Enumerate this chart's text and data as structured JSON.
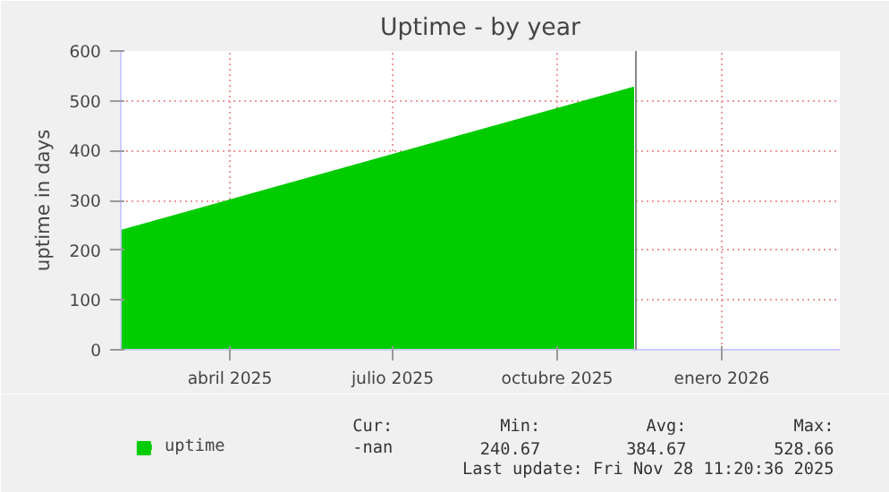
{
  "chart_data": {
    "type": "area",
    "title": "Uptime - by year",
    "ylabel": "uptime in days",
    "xlim": [
      "2025-02-13",
      "2026-03-22"
    ],
    "xticks": [
      {
        "value": "2025-04-15",
        "label": "abril 2025"
      },
      {
        "value": "2025-07-15",
        "label": "julio 2025"
      },
      {
        "value": "2025-10-15",
        "label": "octubre 2025"
      },
      {
        "value": "2026-01-15",
        "label": "enero 2026"
      }
    ],
    "ylim": [
      0,
      600
    ],
    "yticks": [
      0,
      100,
      200,
      300,
      400,
      500,
      600
    ],
    "series": [
      {
        "name": "uptime",
        "color": "#00cc00",
        "x": [
          "2025-02-13",
          "2025-11-27"
        ],
        "values": [
          240.67,
          528.66
        ]
      }
    ],
    "ref_lines": [
      {
        "axis": "x",
        "value": "2025-11-28",
        "color": "#888888"
      }
    ],
    "annotations": [
      "Cur:",
      "Min:",
      "Avg:",
      "Max:",
      "-nan",
      "240.67",
      "384.67",
      "528.66",
      "Last update: Fri Nov 28 11:20:36 2025"
    ],
    "grid": true,
    "legend": "bottom left"
  }
}
